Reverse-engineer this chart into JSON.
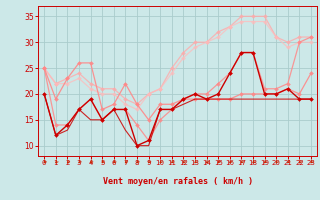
{
  "background_color": "#cce8e8",
  "grid_color": "#aacccc",
  "xlabel": "Vent moyen/en rafales ( km/h )",
  "xlim": [
    -0.5,
    23.5
  ],
  "ylim": [
    8,
    37
  ],
  "yticks": [
    10,
    15,
    20,
    25,
    30,
    35
  ],
  "xticks": [
    0,
    1,
    2,
    3,
    4,
    5,
    6,
    7,
    8,
    9,
    10,
    11,
    12,
    13,
    14,
    15,
    16,
    17,
    18,
    19,
    20,
    21,
    22,
    23
  ],
  "series": [
    {
      "x": [
        0,
        1,
        2,
        3,
        4,
        5,
        6,
        7,
        8,
        9,
        10,
        11,
        12,
        13,
        14,
        15,
        16,
        17,
        18,
        19,
        20,
        21,
        22,
        23
      ],
      "y": [
        20,
        12,
        14,
        17,
        19,
        15,
        17,
        17,
        10,
        11,
        17,
        17,
        19,
        20,
        19,
        20,
        24,
        28,
        28,
        20,
        20,
        21,
        19,
        19
      ],
      "color": "#cc0000",
      "marker": "D",
      "markersize": 2.0,
      "linewidth": 1.0,
      "alpha": 1.0,
      "zorder": 5
    },
    {
      "x": [
        0,
        1,
        2,
        3,
        4,
        5,
        6,
        7,
        8,
        9,
        10,
        11,
        12,
        13,
        14,
        15,
        16,
        17,
        18,
        19,
        20,
        21,
        22,
        23
      ],
      "y": [
        20,
        12,
        13,
        17,
        15,
        15,
        17,
        13,
        10,
        10,
        17,
        17,
        18,
        19,
        19,
        19,
        19,
        19,
        19,
        19,
        19,
        19,
        19,
        19
      ],
      "color": "#cc0000",
      "marker": null,
      "markersize": 0,
      "linewidth": 0.8,
      "alpha": 0.85,
      "zorder": 4
    },
    {
      "x": [
        0,
        1,
        2,
        3,
        4,
        5,
        6,
        7,
        8,
        9,
        10,
        11,
        12,
        13,
        14,
        15,
        16,
        17,
        18,
        19,
        20,
        21,
        22,
        23
      ],
      "y": [
        25,
        19,
        23,
        26,
        26,
        17,
        18,
        22,
        18,
        15,
        18,
        18,
        19,
        19,
        19,
        19,
        19,
        20,
        20,
        20,
        20,
        21,
        20,
        24
      ],
      "color": "#ff8888",
      "marker": "D",
      "markersize": 2.0,
      "linewidth": 0.9,
      "alpha": 0.9,
      "zorder": 3
    },
    {
      "x": [
        0,
        1,
        2,
        3,
        4,
        5,
        6,
        7,
        8,
        9,
        10,
        11,
        12,
        13,
        14,
        15,
        16,
        17,
        18,
        19,
        20,
        21,
        22,
        23
      ],
      "y": [
        25,
        14,
        14,
        17,
        19,
        15,
        17,
        17,
        14,
        11,
        15,
        17,
        19,
        20,
        20,
        22,
        24,
        28,
        28,
        21,
        21,
        22,
        30,
        31
      ],
      "color": "#ff8888",
      "marker": "D",
      "markersize": 2.0,
      "linewidth": 0.9,
      "alpha": 0.85,
      "zorder": 3
    },
    {
      "x": [
        0,
        1,
        2,
        3,
        4,
        5,
        6,
        7,
        8,
        9,
        10,
        11,
        12,
        13,
        14,
        15,
        16,
        17,
        18,
        19,
        20,
        21,
        22,
        23
      ],
      "y": [
        25,
        22,
        23,
        24,
        22,
        21,
        21,
        19,
        18,
        20,
        21,
        25,
        28,
        30,
        30,
        32,
        33,
        35,
        35,
        35,
        31,
        30,
        31,
        31
      ],
      "color": "#ffaaaa",
      "marker": "D",
      "markersize": 2.0,
      "linewidth": 0.9,
      "alpha": 0.8,
      "zorder": 2
    },
    {
      "x": [
        0,
        1,
        2,
        3,
        4,
        5,
        6,
        7,
        8,
        9,
        10,
        11,
        12,
        13,
        14,
        15,
        16,
        17,
        18,
        19,
        20,
        21,
        22,
        23
      ],
      "y": [
        25,
        22,
        22,
        23,
        21,
        20,
        20,
        18,
        17,
        20,
        21,
        24,
        27,
        29,
        30,
        31,
        33,
        34,
        34,
        34,
        31,
        29,
        30,
        30
      ],
      "color": "#ffbbbb",
      "marker": "D",
      "markersize": 2.0,
      "linewidth": 0.9,
      "alpha": 0.75,
      "zorder": 2
    }
  ],
  "arrow_color": "#cc2200",
  "xlabel_color": "#cc0000",
  "tick_color": "#cc0000",
  "spine_color": "#cc0000"
}
